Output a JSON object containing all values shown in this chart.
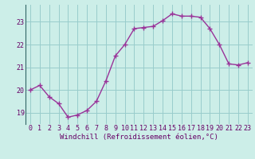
{
  "x": [
    0,
    1,
    2,
    3,
    4,
    5,
    6,
    7,
    8,
    9,
    10,
    11,
    12,
    13,
    14,
    15,
    16,
    17,
    18,
    19,
    20,
    21,
    22,
    23
  ],
  "y": [
    20.0,
    20.2,
    19.7,
    19.4,
    18.8,
    18.9,
    19.1,
    19.5,
    20.4,
    21.5,
    22.0,
    22.7,
    22.75,
    22.8,
    23.05,
    23.35,
    23.25,
    23.25,
    23.2,
    22.7,
    22.0,
    21.15,
    21.1,
    21.2
  ],
  "line_color": "#993399",
  "marker": "+",
  "marker_size": 4,
  "marker_edge_width": 1.0,
  "bg_color": "#cceee8",
  "grid_color": "#99cccc",
  "xlabel": "Windchill (Refroidissement éolien,°C)",
  "xlabel_color": "#660066",
  "tick_color": "#660066",
  "ylim": [
    18.5,
    23.75
  ],
  "xlim": [
    -0.5,
    23.5
  ],
  "yticks": [
    19,
    20,
    21,
    22,
    23
  ],
  "xticks": [
    0,
    1,
    2,
    3,
    4,
    5,
    6,
    7,
    8,
    9,
    10,
    11,
    12,
    13,
    14,
    15,
    16,
    17,
    18,
    19,
    20,
    21,
    22,
    23
  ],
  "font_size": 6,
  "xlabel_font_size": 6.5,
  "line_width": 1.0,
  "spine_color": "#336666",
  "fig_width": 3.2,
  "fig_height": 2.0,
  "dpi": 100
}
